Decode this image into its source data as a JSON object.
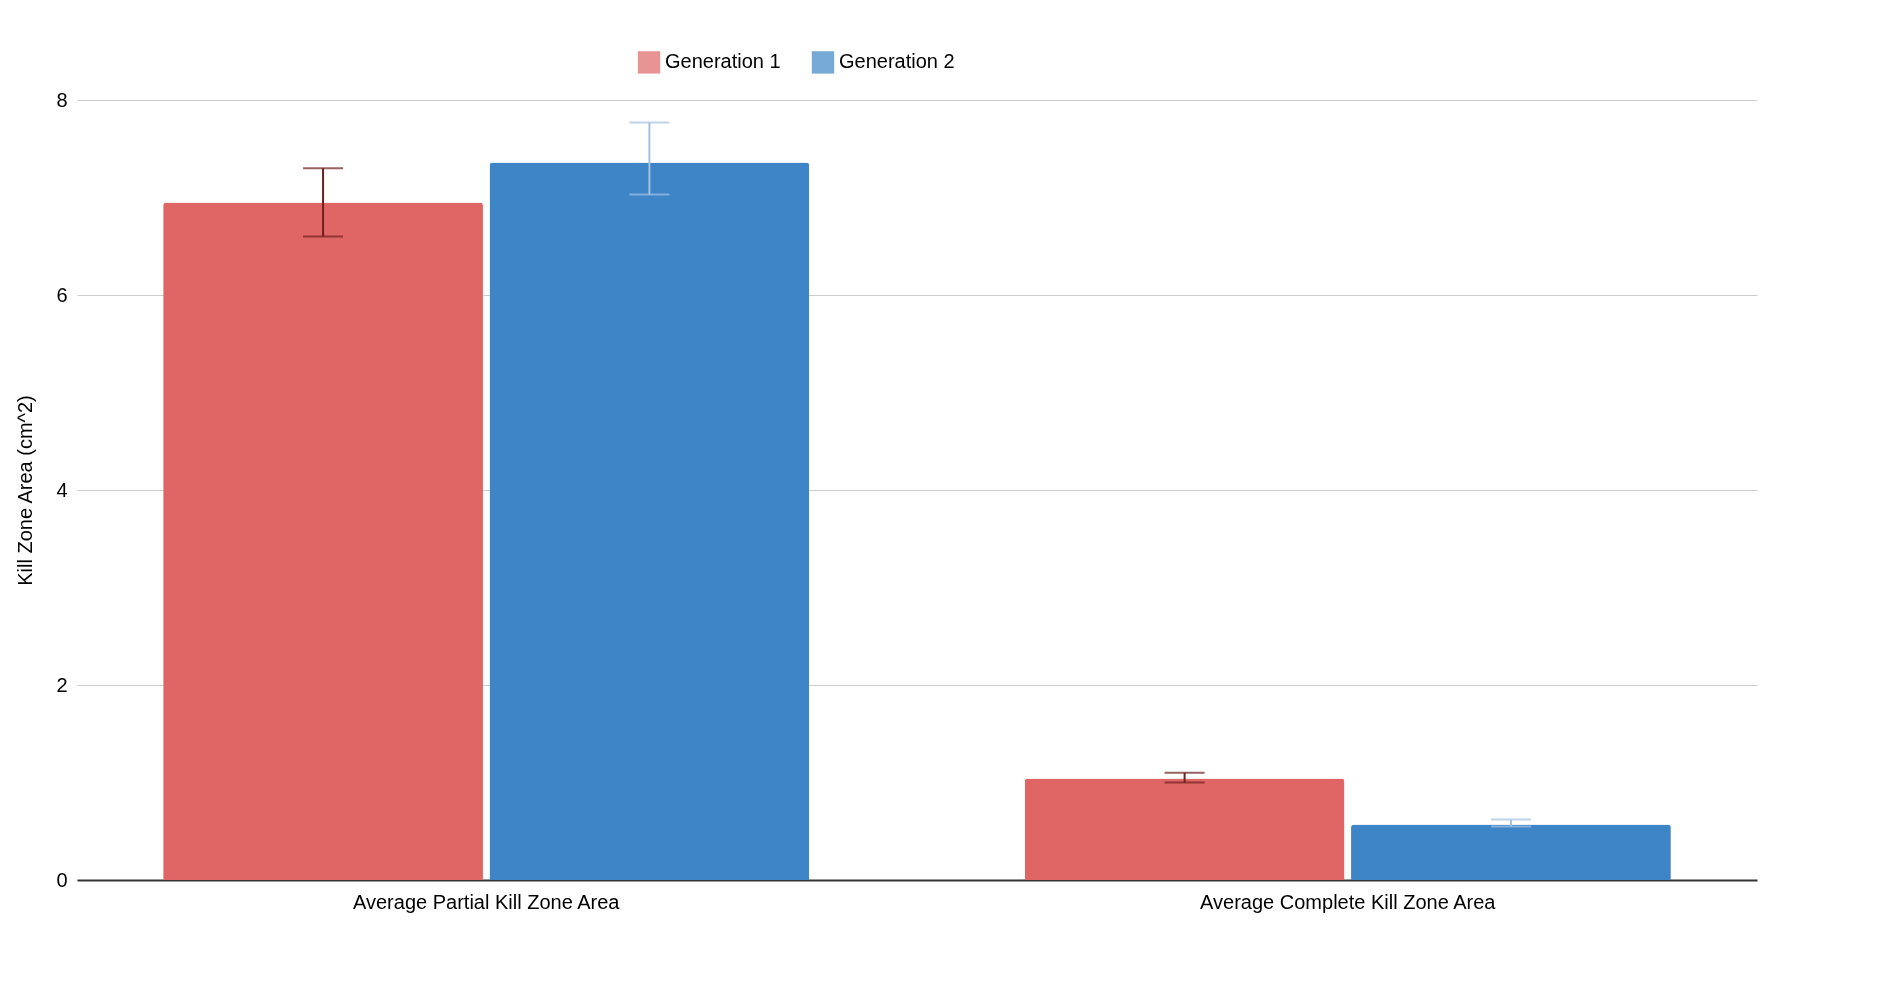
{
  "chart_data": {
    "type": "bar",
    "ylabel": "Kill Zone Area (cm^2)",
    "categories": [
      "Average Partial Kill Zone Area",
      "Average Complete Kill Zone Area"
    ],
    "series": [
      {
        "name": "Generation 1",
        "color": "#e06666",
        "values": [
          6.95,
          1.04
        ],
        "errors": [
          [
            6.6,
            7.3
          ],
          [
            1.0,
            1.1
          ]
        ]
      },
      {
        "name": "Generation 2",
        "color": "#3d85c6",
        "values": [
          7.36,
          0.57
        ],
        "errors": [
          [
            7.03,
            7.77
          ],
          [
            0.55,
            0.62
          ]
        ]
      }
    ],
    "ylim": [
      0,
      8
    ],
    "yticks": [
      0,
      2,
      4,
      6,
      8
    ],
    "grid": "y",
    "legend": "top"
  }
}
